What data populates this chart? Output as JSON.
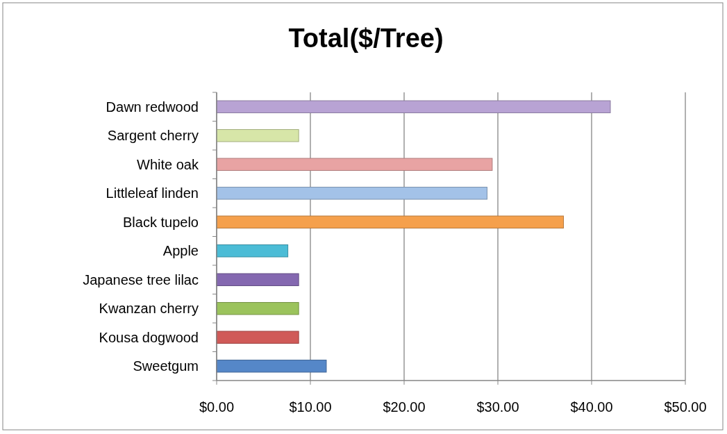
{
  "chart_data": {
    "type": "bar",
    "title": "Total($/Tree)",
    "orientation": "horizontal",
    "categories": [
      "Dawn redwood",
      "Sargent cherry",
      "White oak",
      "Littleleaf linden",
      "Black tupelo",
      "Apple",
      "Japanese tree lilac",
      "Kwanzan cherry",
      "Kousa dogwood",
      "Sweetgum"
    ],
    "values": [
      42.0,
      8.75,
      29.4,
      28.85,
      37.0,
      7.6,
      8.75,
      8.75,
      8.75,
      11.7
    ],
    "colors": [
      "#b8a3d4",
      "#d7e6a8",
      "#e8a3a3",
      "#a3c2e8",
      "#f5a04c",
      "#4bbcd6",
      "#8468b0",
      "#9bc35c",
      "#d05a58",
      "#5587c8"
    ],
    "xlim": [
      0,
      50
    ],
    "xticks": [
      {
        "value": 0,
        "label": "$0.00"
      },
      {
        "value": 10,
        "label": "$10.00"
      },
      {
        "value": 20,
        "label": "$20.00"
      },
      {
        "value": 30,
        "label": "$30.00"
      },
      {
        "value": 40,
        "label": "$40.00"
      },
      {
        "value": 50,
        "label": "$50.00"
      }
    ],
    "grid": "x"
  }
}
